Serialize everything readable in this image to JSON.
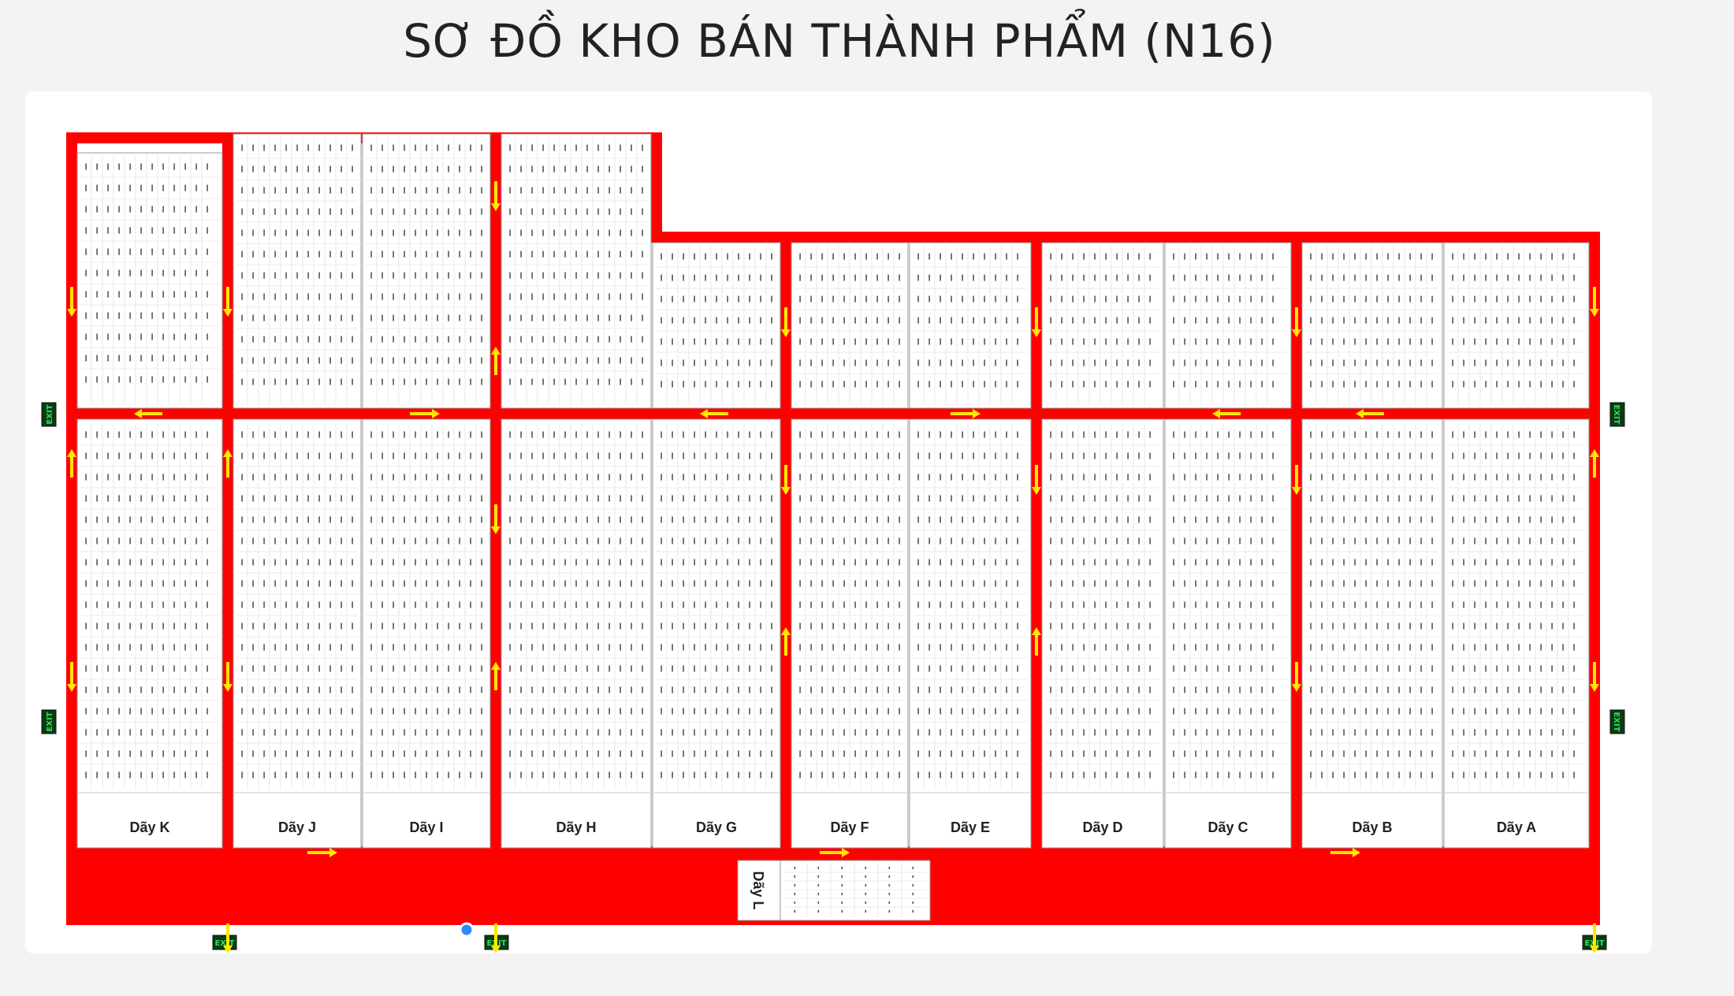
{
  "title": "SƠ ĐỒ KHO BÁN THÀNH PHẨM (N16)",
  "colors": {
    "aisle": "#ff0000",
    "arrow": "#ffe800",
    "exit_bg": "#0b3b12",
    "exit_text": "#2ee05a",
    "cell_line": "#d8d8d8"
  },
  "exit_label": "EXIT",
  "rows": [
    {
      "id": "K",
      "label": "Dãy K"
    },
    {
      "id": "J",
      "label": "Dãy J"
    },
    {
      "id": "I",
      "label": "Dãy I"
    },
    {
      "id": "H",
      "label": "Dãy H"
    },
    {
      "id": "G",
      "label": "Dãy G"
    },
    {
      "id": "F",
      "label": "Dãy F"
    },
    {
      "id": "E",
      "label": "Dãy E"
    },
    {
      "id": "D",
      "label": "Dãy D"
    },
    {
      "id": "C",
      "label": "Dãy C"
    },
    {
      "id": "B",
      "label": "Dãy B"
    },
    {
      "id": "A",
      "label": "Dãy A"
    }
  ],
  "row_l": {
    "id": "L",
    "label": "Dãy L"
  }
}
